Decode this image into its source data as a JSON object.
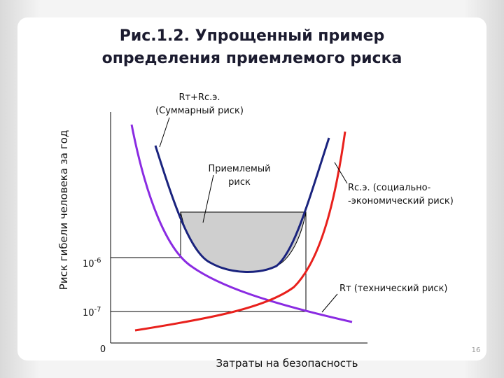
{
  "title": [
    "Рис.1.2. Упрощенный пример",
    "определения приемлемого риска"
  ],
  "y_axis_label": "Риск гибели человека за год",
  "x_axis_label": "Затраты на безопасность",
  "y_ticks": [
    {
      "base": "10",
      "exponent": "-6"
    },
    {
      "base": "10",
      "exponent": "-7"
    }
  ],
  "origin": "0",
  "annotations": {
    "total": [
      "Rт+Rс.э.",
      "(Суммарный риск)"
    ],
    "acceptable": [
      "Приемлемый",
      "риск"
    ],
    "socio_economic": [
      "Rс.э. (социально-",
      "-экономический риск)"
    ],
    "technical": "Rт (технический риск)"
  },
  "page_number": "16"
}
